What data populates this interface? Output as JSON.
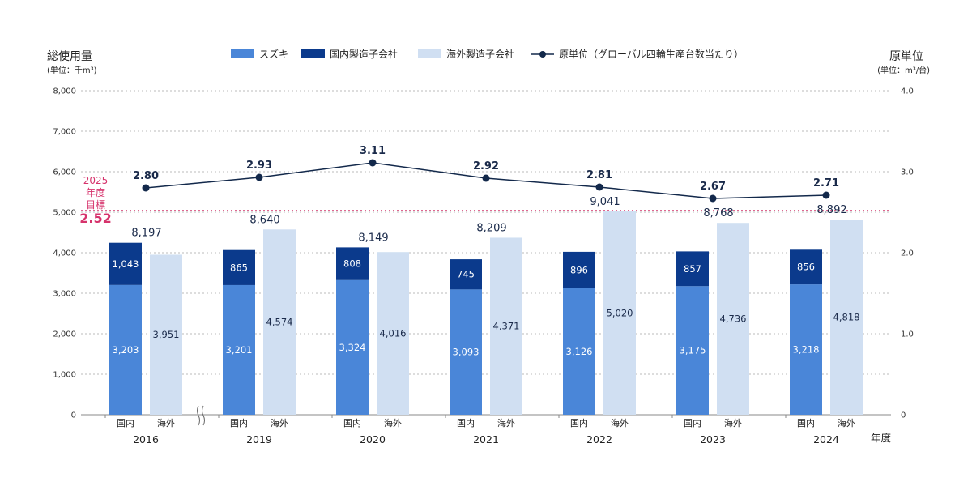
{
  "chart_data": {
    "type": "bar",
    "left_axis": {
      "title": "総使用量",
      "unit": "(単位：千m³)",
      "ticks": [
        "0",
        "1,000",
        "2,000",
        "3,000",
        "4,000",
        "5,000",
        "6,000",
        "7,000",
        "8,000"
      ],
      "range": [
        0,
        8000
      ]
    },
    "right_axis": {
      "title": "原単位",
      "unit": "(単位：m³/台)",
      "ticks": [
        "0",
        "1.0",
        "2.0",
        "3.0",
        "4.0"
      ],
      "range": [
        0,
        4
      ]
    },
    "x_unit": "年度",
    "grid": true,
    "legend": {
      "position": "top",
      "items": [
        {
          "label": "スズキ",
          "color": "#4a86d8",
          "kind": "box"
        },
        {
          "label": "国内製造子会社",
          "color": "#0b3a8c",
          "kind": "box"
        },
        {
          "label": "海外製造子会社",
          "color": "#d0dff2",
          "kind": "box"
        },
        {
          "label": "原単位（グローバル四輪生産台数当たり）",
          "color": "#13294b",
          "kind": "line"
        }
      ]
    },
    "target": {
      "label_line1": "2025",
      "label_line2": "年度",
      "label_line3": "目標",
      "value": 2.52,
      "value_text": "2.52",
      "color": "#d6336c"
    },
    "category_labels": [
      "国内",
      "海外"
    ],
    "years": [
      {
        "year": "2016",
        "suzuki": 3203,
        "suzuki_label": "3,203",
        "domestic_sub": 1043,
        "domestic_sub_label": "1,043",
        "overseas": 3951,
        "overseas_label": "3,951",
        "total_label": "8,197",
        "intensity": 2.8,
        "intensity_label": "2.80"
      },
      {
        "year": "2019",
        "suzuki": 3201,
        "suzuki_label": "3,201",
        "domestic_sub": 865,
        "domestic_sub_label": "865",
        "overseas": 4574,
        "overseas_label": "4,574",
        "total_label": "8,640",
        "intensity": 2.93,
        "intensity_label": "2.93"
      },
      {
        "year": "2020",
        "suzuki": 3324,
        "suzuki_label": "3,324",
        "domestic_sub": 808,
        "domestic_sub_label": "808",
        "overseas": 4016,
        "overseas_label": "4,016",
        "total_label": "8,149",
        "intensity": 3.11,
        "intensity_label": "3.11"
      },
      {
        "year": "2021",
        "suzuki": 3093,
        "suzuki_label": "3,093",
        "domestic_sub": 745,
        "domestic_sub_label": "745",
        "overseas": 4371,
        "overseas_label": "4,371",
        "total_label": "8,209",
        "intensity": 2.92,
        "intensity_label": "2.92"
      },
      {
        "year": "2022",
        "suzuki": 3126,
        "suzuki_label": "3,126",
        "domestic_sub": 896,
        "domestic_sub_label": "896",
        "overseas": 5020,
        "overseas_label": "5,020",
        "total_label": "9,041",
        "intensity": 2.81,
        "intensity_label": "2.81"
      },
      {
        "year": "2023",
        "suzuki": 3175,
        "suzuki_label": "3,175",
        "domestic_sub": 857,
        "domestic_sub_label": "857",
        "overseas": 4736,
        "overseas_label": "4,736",
        "total_label": "8,768",
        "intensity": 2.67,
        "intensity_label": "2.67"
      },
      {
        "year": "2024",
        "suzuki": 3218,
        "suzuki_label": "3,218",
        "domestic_sub": 856,
        "domestic_sub_label": "856",
        "overseas": 4818,
        "overseas_label": "4,818",
        "total_label": "8,892",
        "intensity": 2.71,
        "intensity_label": "2.71"
      }
    ],
    "axis_break_after_index": 0
  }
}
